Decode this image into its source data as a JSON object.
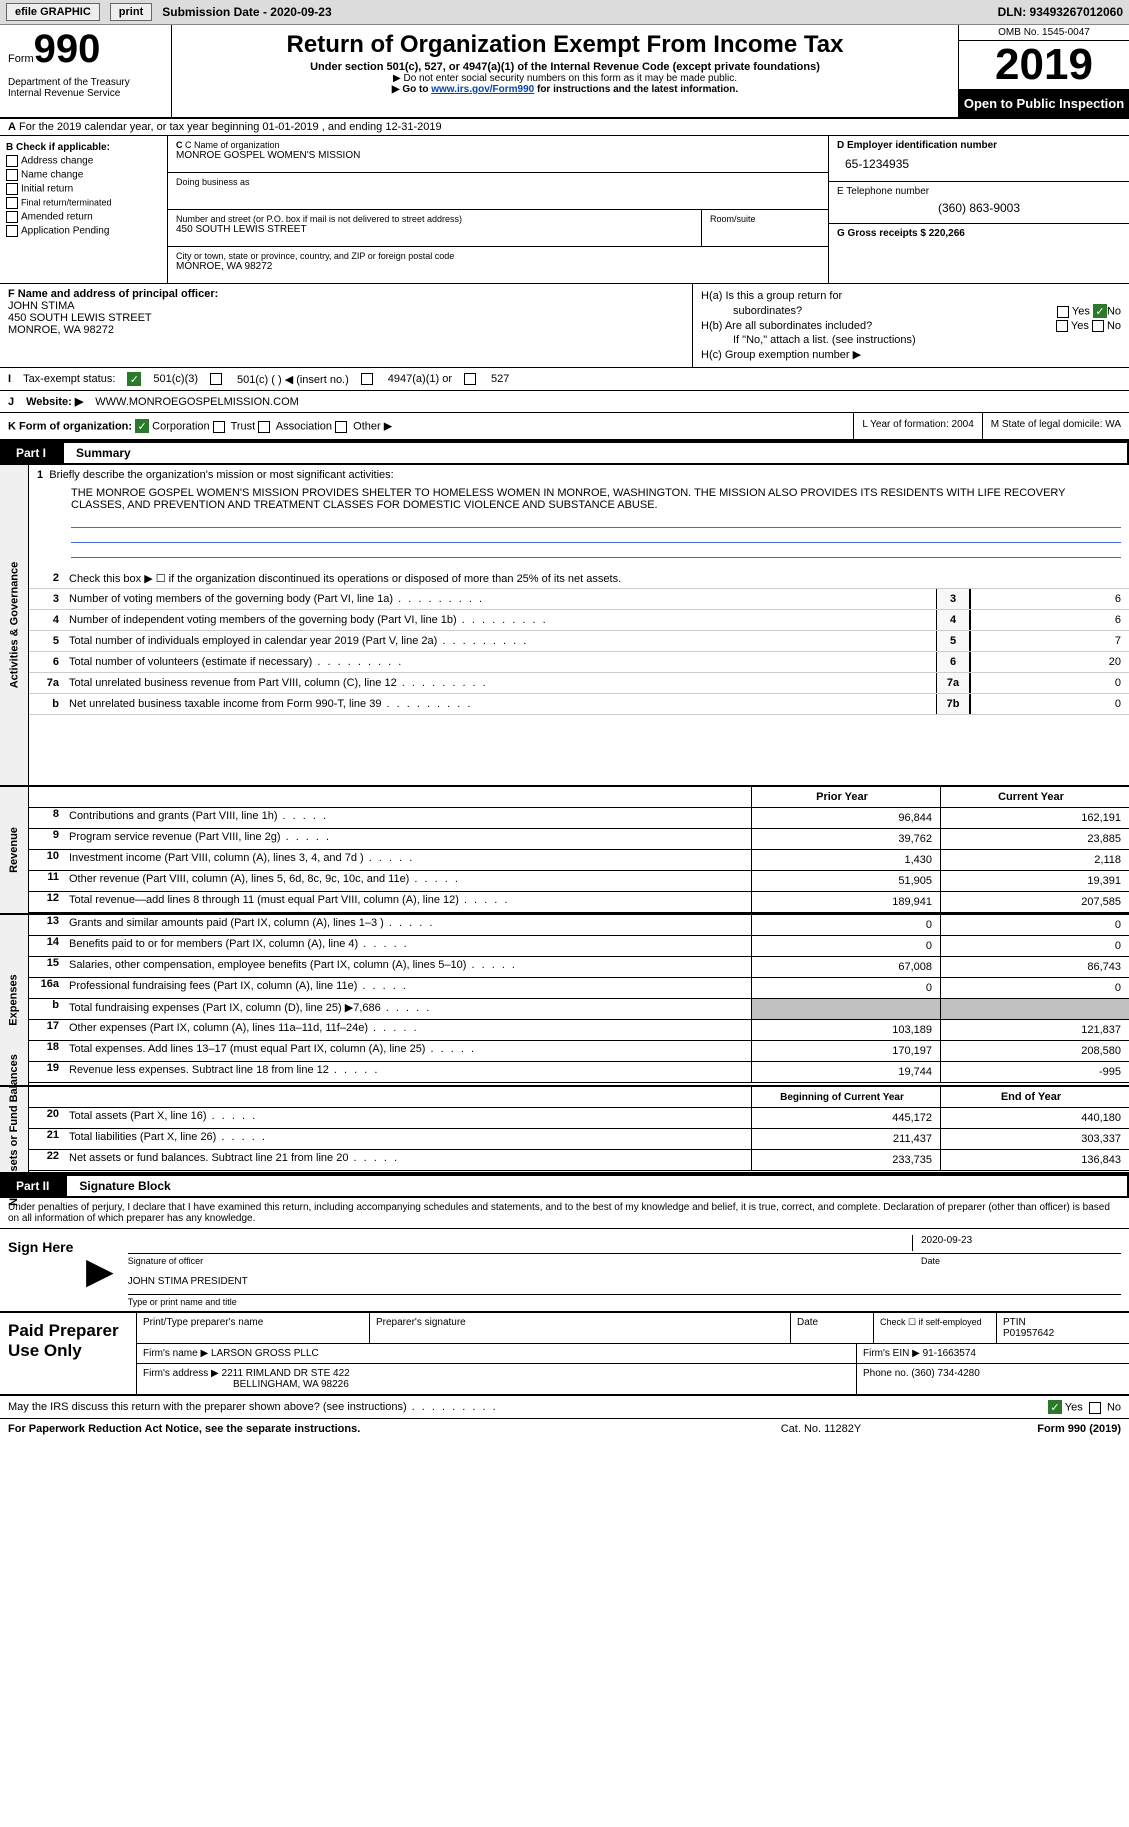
{
  "topbar": {
    "efile": "efile GRAPHIC",
    "print": "print",
    "submission": "Submission Date - 2020-09-23",
    "dln": "DLN: 93493267012060"
  },
  "header": {
    "form": "Form",
    "form_num": "990",
    "dept": "Department of the Treasury Internal Revenue Service",
    "title": "Return of Organization Exempt From Income Tax",
    "subtitle": "Under section 501(c), 527, or 4947(a)(1) of the Internal Revenue Code (except private foundations)",
    "instr1": "Do not enter social security numbers on this form as it may be made public.",
    "instr2_pre": "Go to ",
    "instr2_link": "www.irs.gov/Form990",
    "instr2_post": " for instructions and the latest information.",
    "omb": "OMB No. 1545-0047",
    "year": "2019",
    "open_public": "Open to Public Inspection"
  },
  "row_a": "For the 2019 calendar year, or tax year beginning 01-01-2019   , and ending 12-31-2019",
  "col_b": {
    "header": "B Check if applicable:",
    "addr_change": "Address change",
    "name_change": "Name change",
    "initial": "Initial return",
    "final": "Final return/terminated",
    "amended": "Amended return",
    "app_pending": "Application Pending"
  },
  "org": {
    "c_label": "C Name of organization",
    "name": "MONROE GOSPEL WOMEN'S MISSION",
    "dba_label": "Doing business as",
    "street_label": "Number and street (or P.O. box if mail is not delivered to street address)",
    "room_label": "Room/suite",
    "street": "450 SOUTH LEWIS STREET",
    "city_label": "City or town, state or province, country, and ZIP or foreign postal code",
    "city": "MONROE, WA  98272"
  },
  "col_d": {
    "d_label": "D Employer identification number",
    "ein": "65-1234935",
    "e_label": "E Telephone number",
    "phone": "(360) 863-9003",
    "g_label": "G Gross receipts $ 220,266"
  },
  "officer": {
    "f_label": "F Name and address of principal officer:",
    "name": "JOHN STIMA",
    "street": "450 SOUTH LEWIS STREET",
    "city": "MONROE, WA  98272"
  },
  "h": {
    "a": "H(a)  Is this a group return for",
    "a2": "subordinates?",
    "b": "H(b)  Are all subordinates included?",
    "b2": "If \"No,\" attach a list. (see instructions)",
    "c": "H(c)  Group exemption number ▶",
    "yes": "Yes",
    "no": "No"
  },
  "tax_status": {
    "i": "I",
    "label": "Tax-exempt status:",
    "c3": "501(c)(3)",
    "c": "501(c) (  ) ◀ (insert no.)",
    "a1": "4947(a)(1) or",
    "527": "527"
  },
  "website": {
    "j": "J",
    "label": "Website: ▶",
    "url": "WWW.MONROEGOSPELMISSION.COM"
  },
  "k": {
    "label": "K Form of organization:",
    "corp": "Corporation",
    "trust": "Trust",
    "assoc": "Association",
    "other": "Other ▶"
  },
  "l": "L Year of formation: 2004",
  "m": "M State of legal domicile: WA",
  "part1": {
    "label": "Part I",
    "title": "Summary"
  },
  "mission": {
    "line1_num": "1",
    "line1": "Briefly describe the organization's mission or most significant activities:",
    "text": "THE MONROE GOSPEL WOMEN'S MISSION PROVIDES SHELTER TO HOMELESS WOMEN IN MONROE, WASHINGTON. THE MISSION ALSO PROVIDES ITS RESIDENTS WITH LIFE RECOVERY CLASSES, AND PREVENTION AND TREATMENT CLASSES FOR DOMESTIC VIOLENCE AND SUBSTANCE ABUSE."
  },
  "gov_lines": [
    {
      "n": "2",
      "t": "Check this box ▶ ☐  if the organization discontinued its operations or disposed of more than 25% of its net assets.",
      "box": "",
      "v": ""
    },
    {
      "n": "3",
      "t": "Number of voting members of the governing body (Part VI, line 1a)",
      "box": "3",
      "v": "6"
    },
    {
      "n": "4",
      "t": "Number of independent voting members of the governing body (Part VI, line 1b)",
      "box": "4",
      "v": "6"
    },
    {
      "n": "5",
      "t": "Total number of individuals employed in calendar year 2019 (Part V, line 2a)",
      "box": "5",
      "v": "7"
    },
    {
      "n": "6",
      "t": "Total number of volunteers (estimate if necessary)",
      "box": "6",
      "v": "20"
    },
    {
      "n": "7a",
      "t": "Total unrelated business revenue from Part VIII, column (C), line 12",
      "box": "7a",
      "v": "0"
    },
    {
      "n": "b",
      "t": "Net unrelated business taxable income from Form 990-T, line 39",
      "box": "7b",
      "v": "0"
    }
  ],
  "side_labels": {
    "gov": "Activities & Governance",
    "rev": "Revenue",
    "exp": "Expenses",
    "net": "Net Assets or Fund Balances"
  },
  "cols": {
    "prior": "Prior Year",
    "current": "Current Year",
    "beg": "Beginning of Current Year",
    "end": "End of Year"
  },
  "revenue": [
    {
      "n": "8",
      "t": "Contributions and grants (Part VIII, line 1h)",
      "p": "96,844",
      "c": "162,191"
    },
    {
      "n": "9",
      "t": "Program service revenue (Part VIII, line 2g)",
      "p": "39,762",
      "c": "23,885"
    },
    {
      "n": "10",
      "t": "Investment income (Part VIII, column (A), lines 3, 4, and 7d )",
      "p": "1,430",
      "c": "2,118"
    },
    {
      "n": "11",
      "t": "Other revenue (Part VIII, column (A), lines 5, 6d, 8c, 9c, 10c, and 11e)",
      "p": "51,905",
      "c": "19,391"
    },
    {
      "n": "12",
      "t": "Total revenue—add lines 8 through 11 (must equal Part VIII, column (A), line 12)",
      "p": "189,941",
      "c": "207,585"
    }
  ],
  "expenses": [
    {
      "n": "13",
      "t": "Grants and similar amounts paid (Part IX, column (A), lines 1–3 )",
      "p": "0",
      "c": "0"
    },
    {
      "n": "14",
      "t": "Benefits paid to or for members (Part IX, column (A), line 4)",
      "p": "0",
      "c": "0"
    },
    {
      "n": "15",
      "t": "Salaries, other compensation, employee benefits (Part IX, column (A), lines 5–10)",
      "p": "67,008",
      "c": "86,743"
    },
    {
      "n": "16a",
      "t": "Professional fundraising fees (Part IX, column (A), line 11e)",
      "p": "0",
      "c": "0"
    },
    {
      "n": "b",
      "t": "Total fundraising expenses (Part IX, column (D), line 25) ▶7,686",
      "p": "grey",
      "c": "grey"
    },
    {
      "n": "17",
      "t": "Other expenses (Part IX, column (A), lines 11a–11d, 11f–24e)",
      "p": "103,189",
      "c": "121,837"
    },
    {
      "n": "18",
      "t": "Total expenses. Add lines 13–17 (must equal Part IX, column (A), line 25)",
      "p": "170,197",
      "c": "208,580"
    },
    {
      "n": "19",
      "t": "Revenue less expenses. Subtract line 18 from line 12",
      "p": "19,744",
      "c": "-995"
    }
  ],
  "netassets": [
    {
      "n": "20",
      "t": "Total assets (Part X, line 16)",
      "p": "445,172",
      "c": "440,180"
    },
    {
      "n": "21",
      "t": "Total liabilities (Part X, line 26)",
      "p": "211,437",
      "c": "303,337"
    },
    {
      "n": "22",
      "t": "Net assets or fund balances. Subtract line 21 from line 20",
      "p": "233,735",
      "c": "136,843"
    }
  ],
  "part2": {
    "label": "Part II",
    "title": "Signature Block"
  },
  "sig": {
    "perjury": "Under penalties of perjury, I declare that I have examined this return, including accompanying schedules and statements, and to the best of my knowledge and belief, it is true, correct, and complete. Declaration of preparer (other than officer) is based on all information of which preparer has any knowledge.",
    "sign_here": "Sign Here",
    "sig_officer": "Signature of officer",
    "date": "Date",
    "date_val": "2020-09-23",
    "name_title": "JOHN STIMA  PRESIDENT",
    "type_name": "Type or print name and title"
  },
  "preparer": {
    "label": "Paid Preparer Use Only",
    "print_name": "Print/Type preparer's name",
    "prep_sig": "Preparer's signature",
    "date": "Date",
    "check_self": "Check ☐ if self-employed",
    "ptin_label": "PTIN",
    "ptin": "P01957642",
    "firm_name_label": "Firm's name    ▶",
    "firm_name": "LARSON GROSS PLLC",
    "firm_ein_label": "Firm's EIN ▶",
    "firm_ein": "91-1663574",
    "firm_addr_label": "Firm's address ▶",
    "firm_addr": "2211 RIMLAND DR STE 422",
    "firm_city": "BELLINGHAM, WA  98226",
    "phone_label": "Phone no.",
    "phone": "(360) 734-4280"
  },
  "discuss": "May the IRS discuss this return with the preparer shown above? (see instructions)",
  "footer": {
    "left": "For Paperwork Reduction Act Notice, see the separate instructions.",
    "mid": "Cat. No. 11282Y",
    "right": "Form 990 (2019)"
  }
}
